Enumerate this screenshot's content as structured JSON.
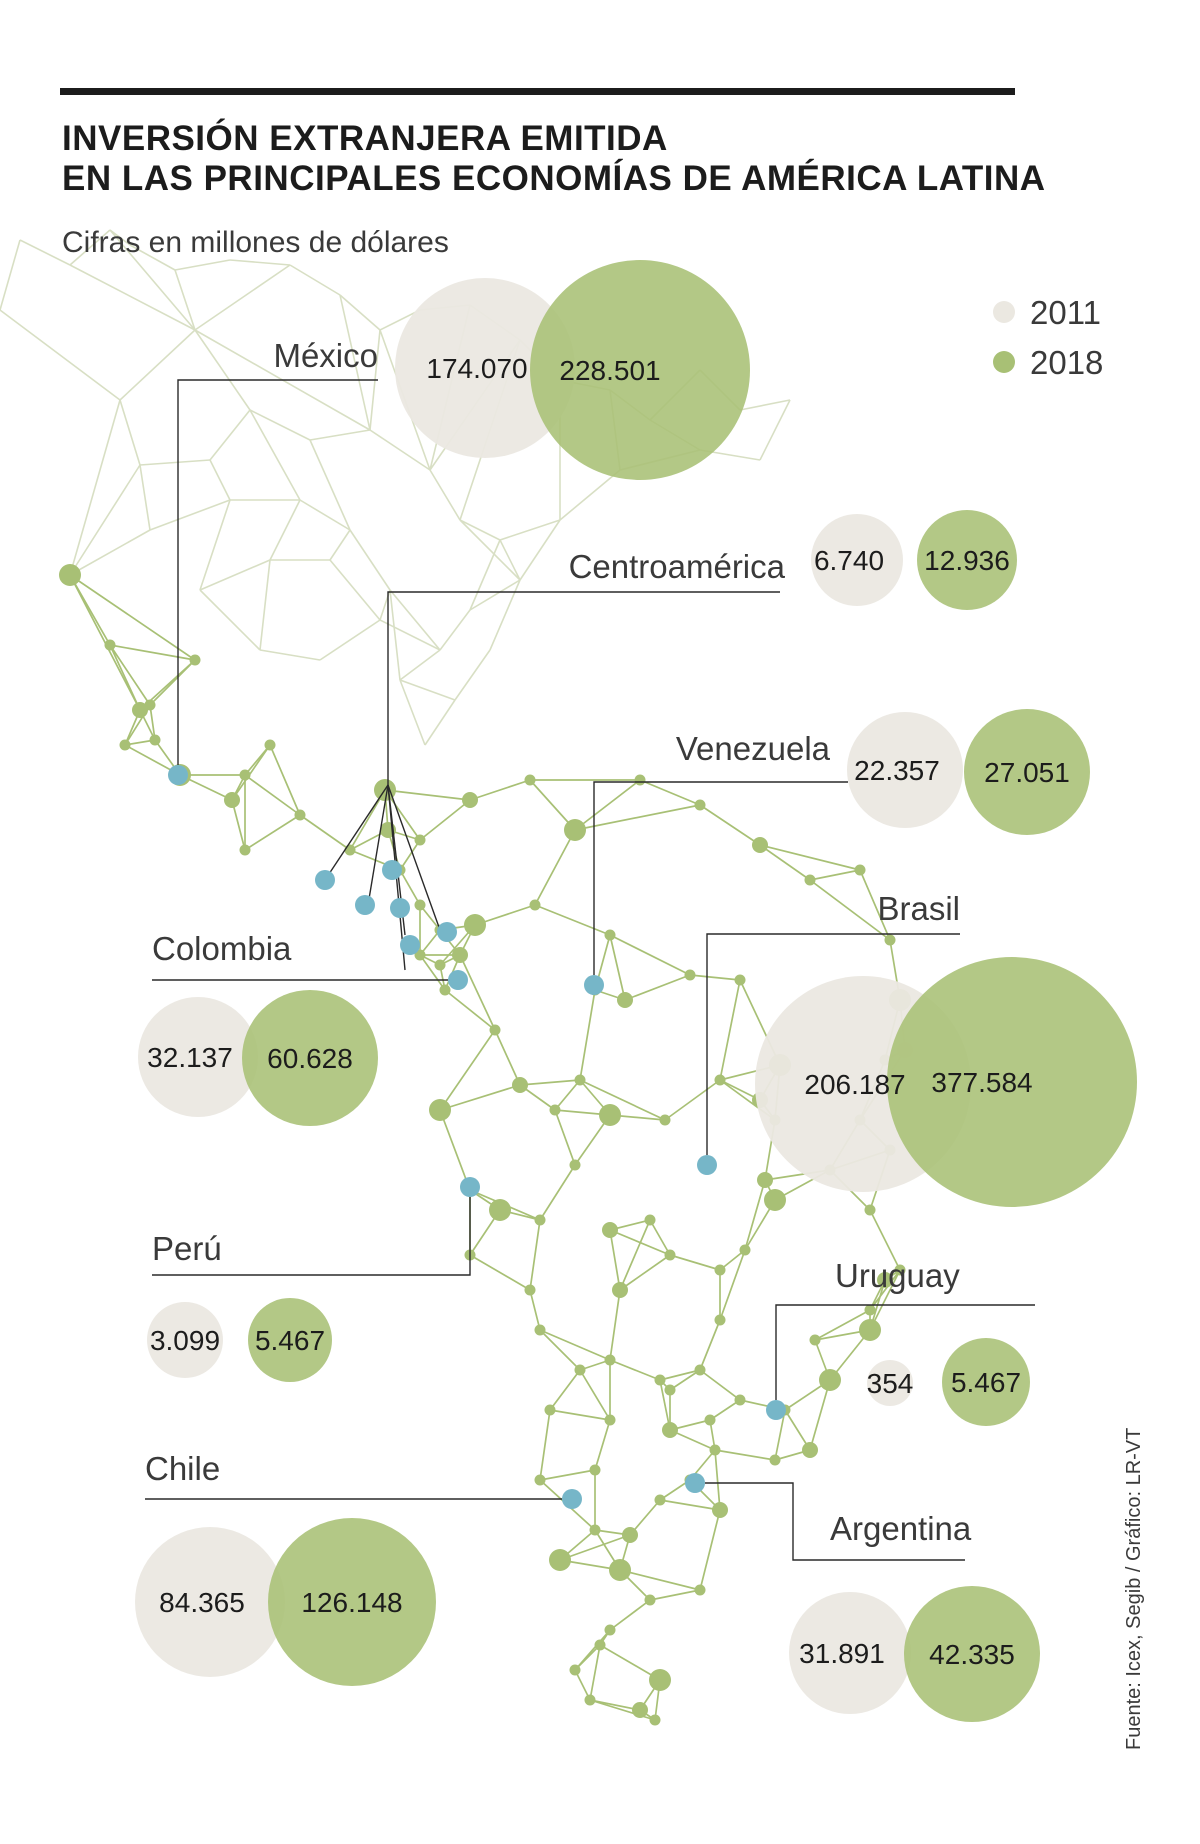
{
  "header": {
    "title_line1": "INVERSIÓN EXTRANJERA EMITIDA",
    "title_line2": "EN LAS PRINCIPALES ECONOMÍAS DE AMÉRICA LATINA",
    "subtitle": "Cifras en millones de dólares"
  },
  "legend": {
    "items": [
      {
        "label": "2011",
        "color": "#ebe8e1"
      },
      {
        "label": "2018",
        "color": "#a8c075"
      }
    ]
  },
  "source": "Fuente: Icex, Segib / Gráfico: LR-VT",
  "colors": {
    "c2011": "#ebe8e1",
    "c2018": "#a8c075",
    "map_dark": "#a8c075",
    "map_light": "#d8dfc4",
    "node_blue": "#76b6c8"
  },
  "chart_data": {
    "type": "bubble",
    "categories": [
      "México",
      "Centroamérica",
      "Venezuela",
      "Brasil",
      "Colombia",
      "Perú",
      "Uruguay",
      "Chile",
      "Argentina"
    ],
    "series": [
      {
        "name": "2011",
        "values": [
          174070,
          6740,
          22357,
          206187,
          32137,
          3099,
          354,
          84365,
          31891
        ],
        "labels": [
          "174.070",
          "6.740",
          "22.357",
          "206.187",
          "32.137",
          "3.099",
          "354",
          "84.365",
          "31.891"
        ]
      },
      {
        "name": "2018",
        "values": [
          228501,
          12936,
          27051,
          377584,
          60628,
          5467,
          5467,
          126148,
          42335
        ],
        "labels": [
          "228.501",
          "12.936",
          "27.051",
          "377.584",
          "60.628",
          "5.467",
          "5.467",
          "126.148",
          "42.335"
        ]
      }
    ]
  }
}
